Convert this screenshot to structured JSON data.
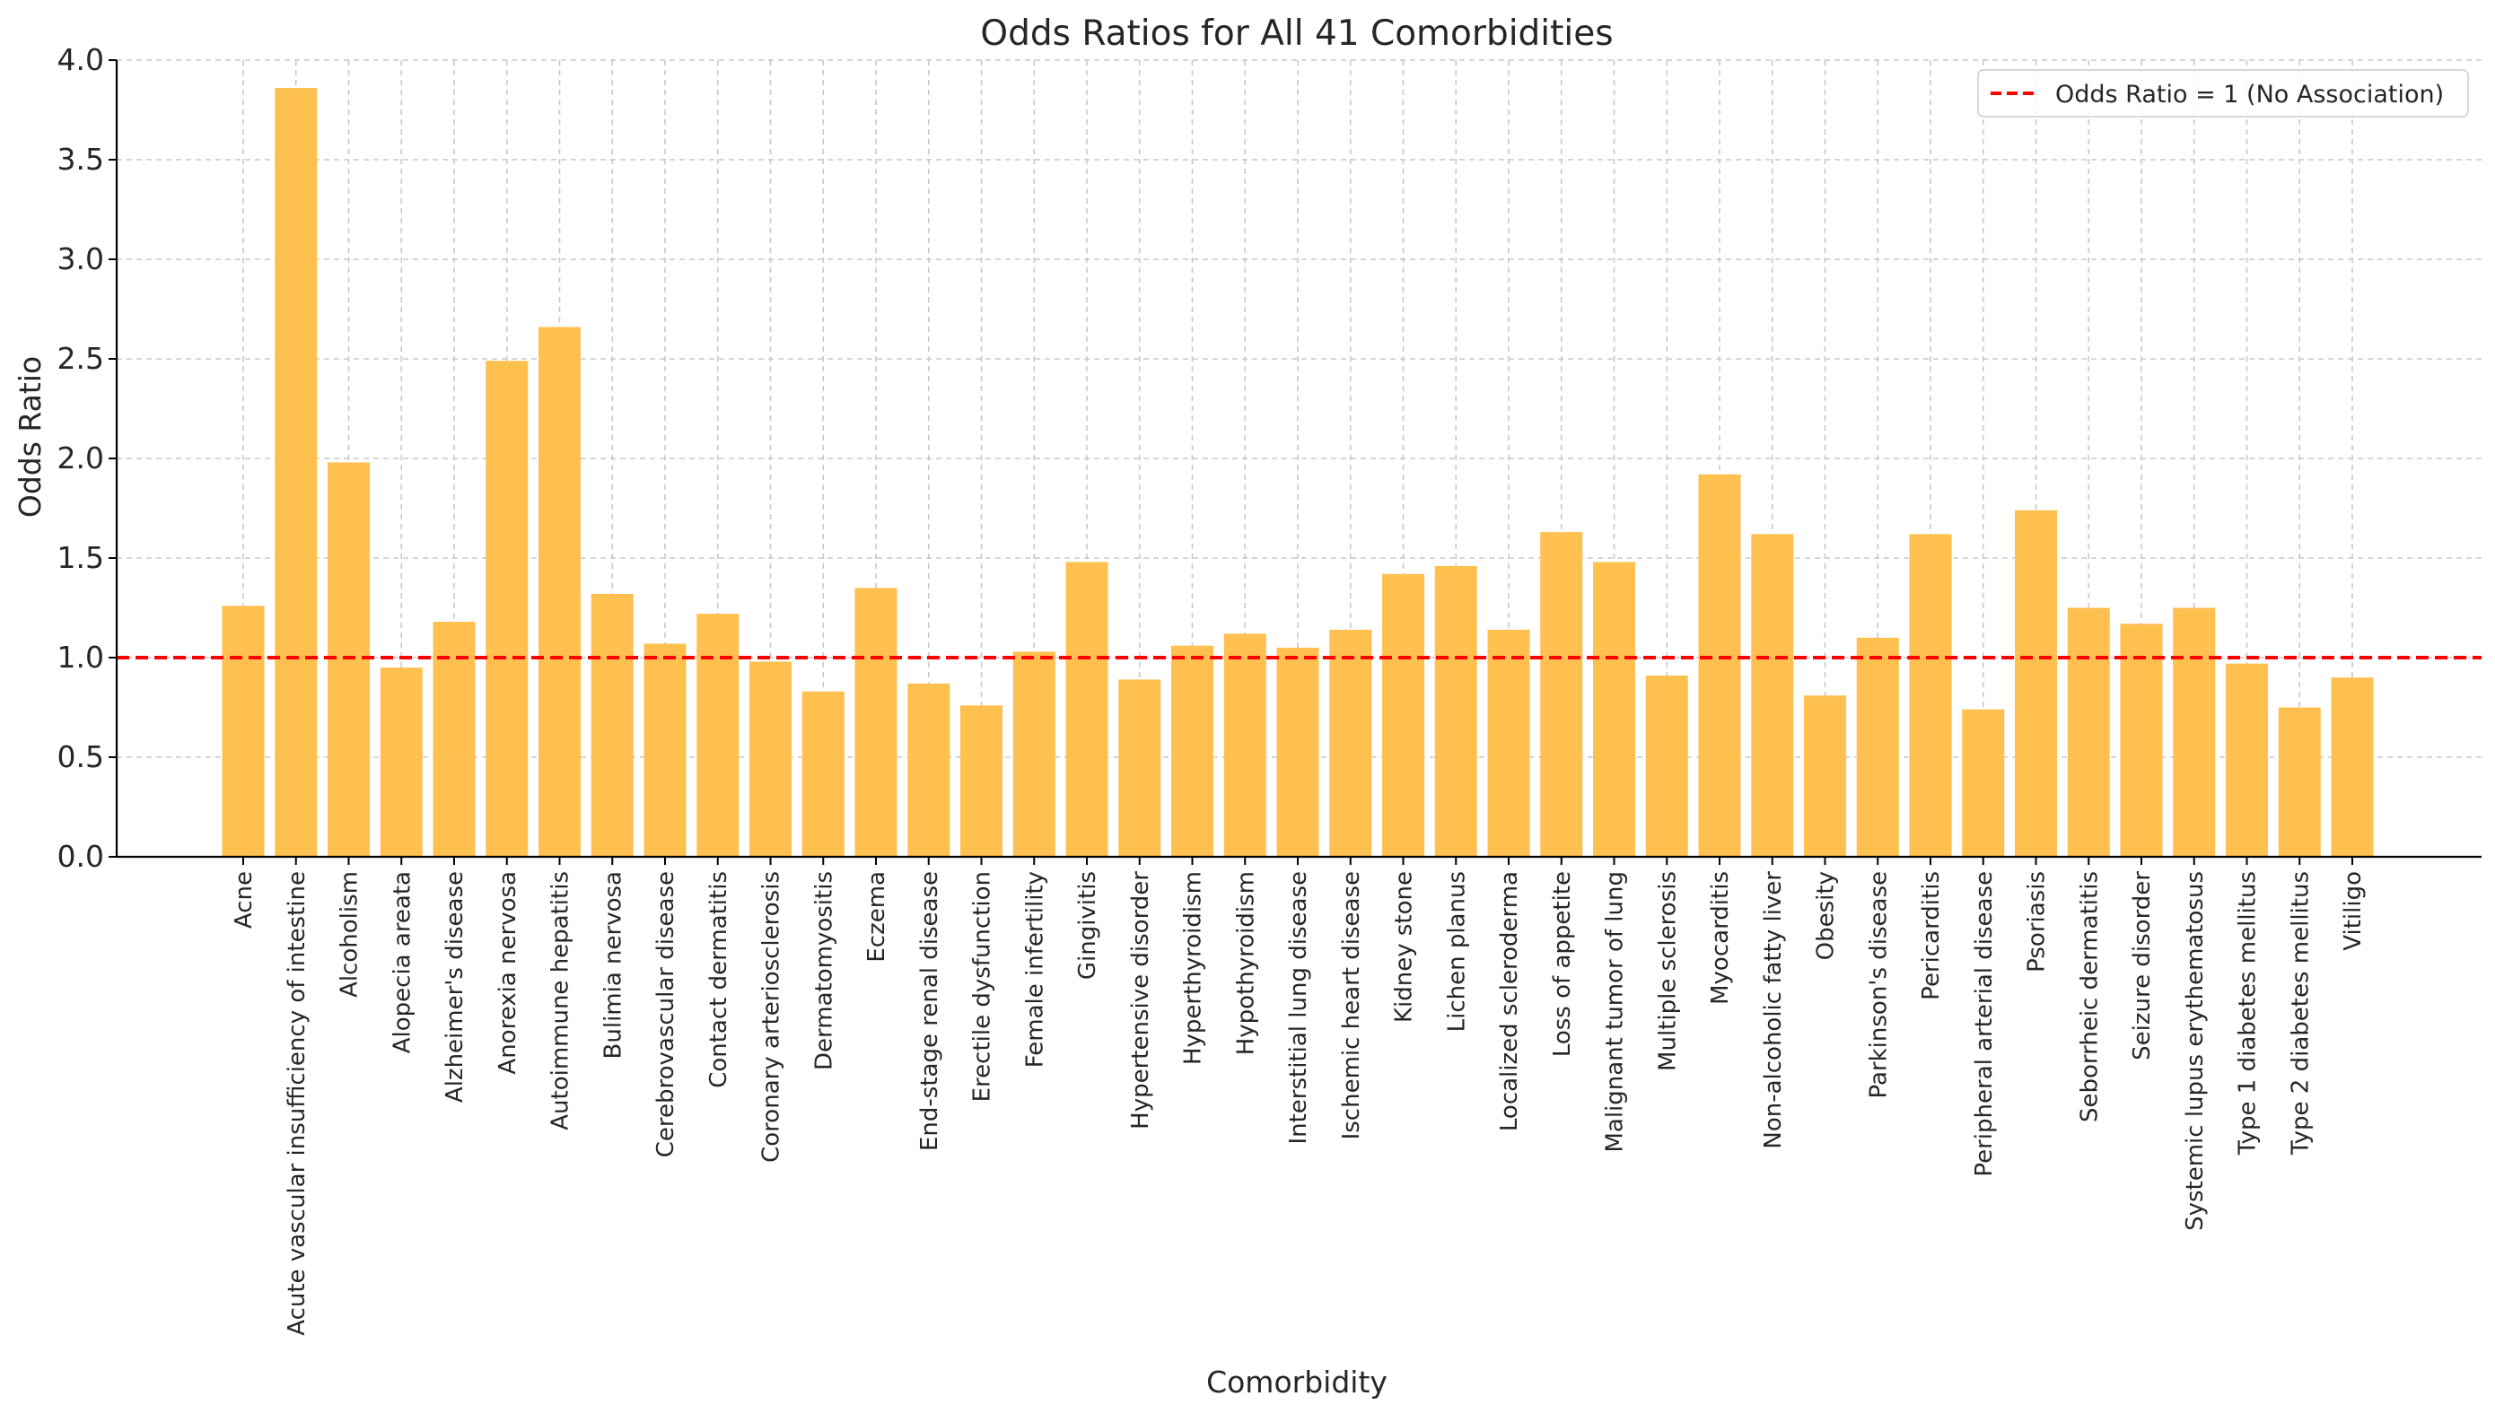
{
  "chart_data": {
    "type": "bar",
    "title": "Odds Ratios for All 41 Comorbidities",
    "xlabel": "Comorbidity",
    "ylabel": "Odds Ratio",
    "ylim": [
      0,
      4.0
    ],
    "yticks": [
      "0.0",
      "0.5",
      "1.0",
      "1.5",
      "2.0",
      "2.5",
      "3.0",
      "3.5",
      "4.0"
    ],
    "grid": true,
    "bar_color": "#ffc050",
    "reference_line": {
      "y": 1.0,
      "color": "#ff0000",
      "style": "dashed",
      "label": "Odds Ratio = 1 (No Association)"
    },
    "legend_position": "top-right",
    "categories": [
      "Acne",
      "Acute vascular insufficiency of intestine",
      "Alcoholism",
      "Alopecia areata",
      "Alzheimer's disease",
      "Anorexia nervosa",
      "Autoimmune hepatitis",
      "Bulimia nervosa",
      "Cerebrovascular disease",
      "Contact dermatitis",
      "Coronary arteriosclerosis",
      "Dermatomyositis",
      "Eczema",
      "End-stage renal disease",
      "Erectile dysfunction",
      "Female infertility",
      "Gingivitis",
      "Hypertensive disorder",
      "Hyperthyroidism",
      "Hypothyroidism",
      "Interstitial lung disease",
      "Ischemic heart disease",
      "Kidney stone",
      "Lichen planus",
      "Localized scleroderma",
      "Loss of appetite",
      "Malignant tumor of lung",
      "Multiple sclerosis",
      "Myocarditis",
      "Non-alcoholic fatty liver",
      "Obesity",
      "Parkinson's disease",
      "Pericarditis",
      "Peripheral arterial disease",
      "Psoriasis",
      "Seborrheic dermatitis",
      "Seizure disorder",
      "Systemic lupus erythematosus",
      "Type 1 diabetes mellitus",
      "Type 2 diabetes mellitus",
      "Vitiligo"
    ],
    "values": [
      1.26,
      3.86,
      1.98,
      0.95,
      1.18,
      2.49,
      2.66,
      1.32,
      1.07,
      1.22,
      0.98,
      0.83,
      1.35,
      0.87,
      0.76,
      1.03,
      1.48,
      0.89,
      1.06,
      1.12,
      1.05,
      1.14,
      1.42,
      1.46,
      1.14,
      1.63,
      1.48,
      0.91,
      1.92,
      1.62,
      0.81,
      1.1,
      1.62,
      0.74,
      1.74,
      1.25,
      1.17,
      1.25,
      0.97,
      0.75,
      0.9
    ]
  }
}
